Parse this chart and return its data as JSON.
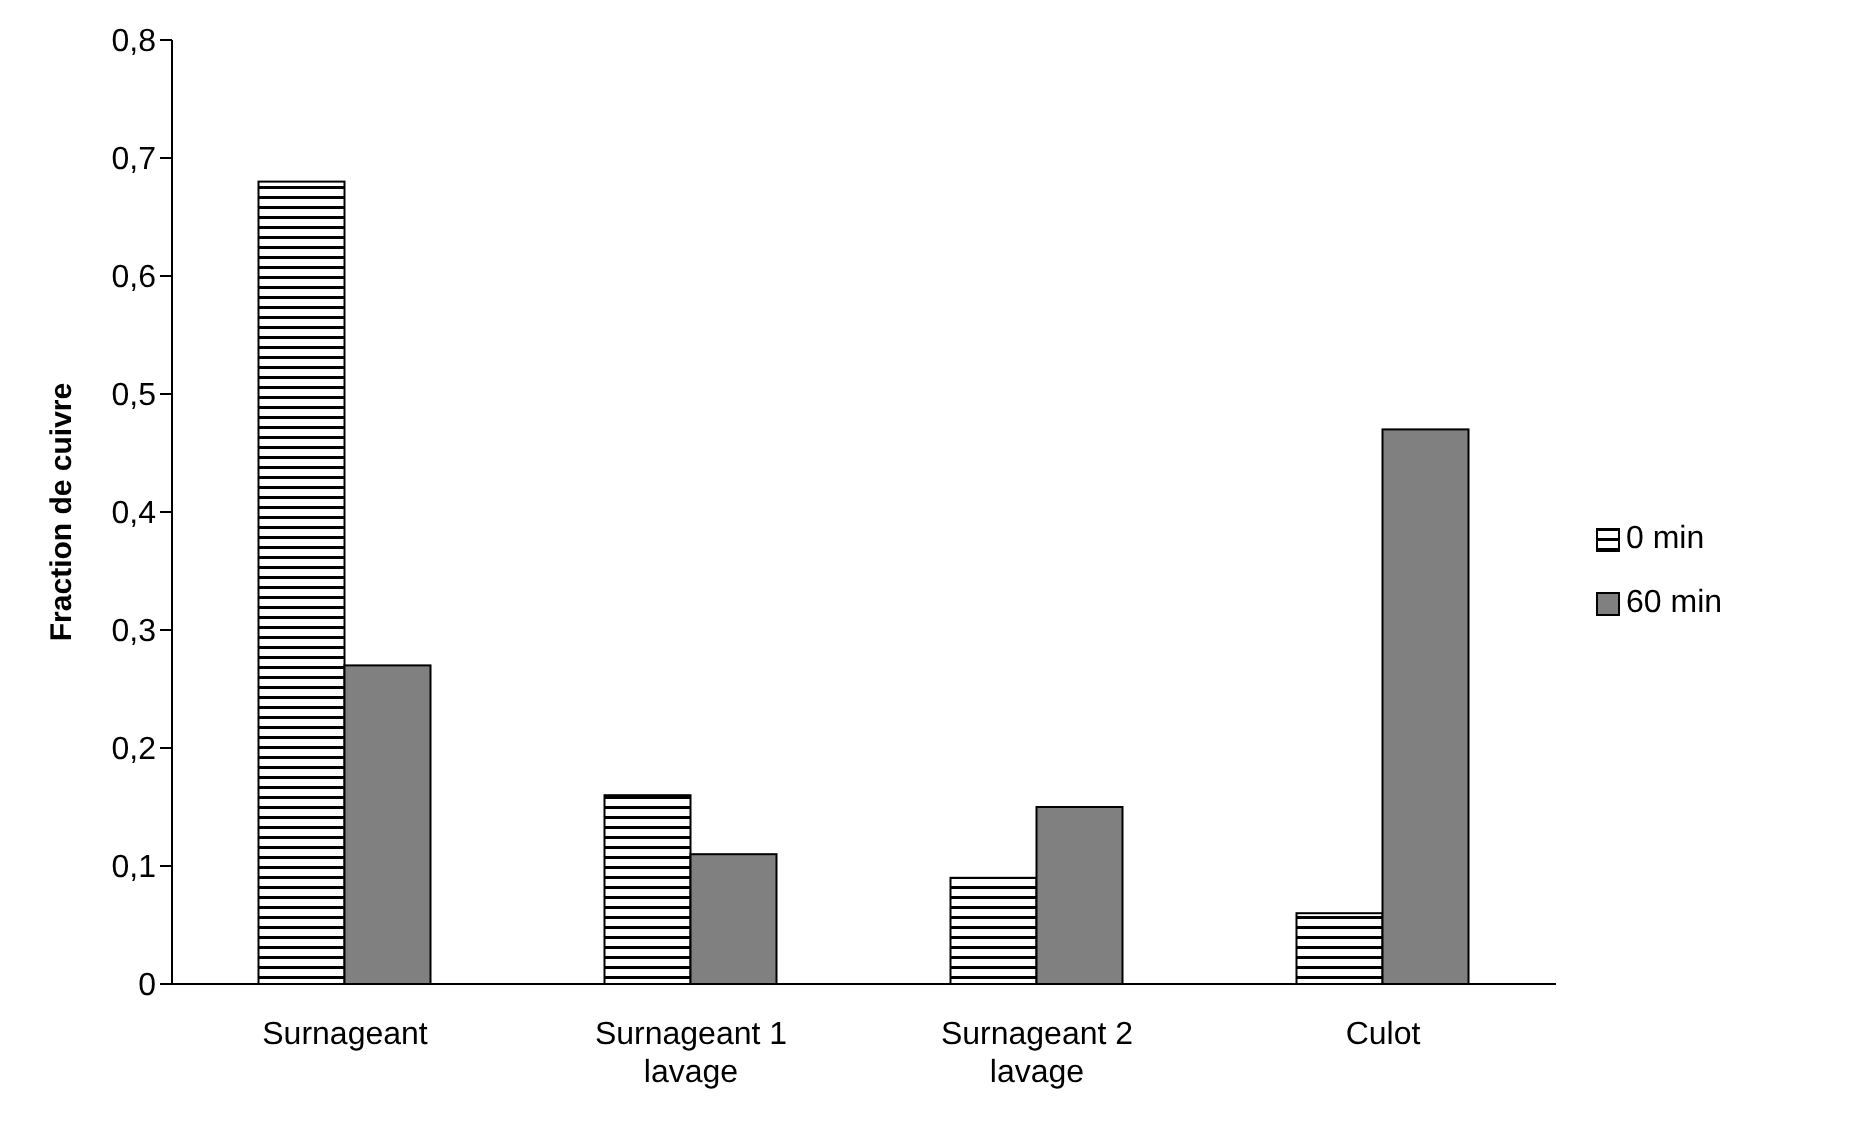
{
  "chart_data": {
    "type": "bar",
    "ylabel": "Fraction de cuivre",
    "categories": [
      "Surnageant",
      "Surnageant 1 lavage",
      "Surnageant 2 lavage",
      "Culot"
    ],
    "series": [
      {
        "name": "0 min",
        "color": "#000000",
        "values": [
          0.68,
          0.16,
          0.09,
          0.06
        ]
      },
      {
        "name": "60 min",
        "color": "#808080",
        "values": [
          0.27,
          0.11,
          0.15,
          0.47
        ]
      }
    ],
    "ylim": [
      0,
      0.8
    ],
    "yticks": [
      {
        "value": 0,
        "label": "0"
      },
      {
        "value": 0.1,
        "label": "0,1"
      },
      {
        "value": 0.2,
        "label": "0,2"
      },
      {
        "value": 0.3,
        "label": "0,3"
      },
      {
        "value": 0.4,
        "label": "0,4"
      },
      {
        "value": 0.5,
        "label": "0,5"
      },
      {
        "value": 0.6,
        "label": "0,6"
      },
      {
        "value": 0.7,
        "label": "0,7"
      },
      {
        "value": 0.8,
        "label": "0,8"
      }
    ],
    "grid": false,
    "legend": "right"
  }
}
